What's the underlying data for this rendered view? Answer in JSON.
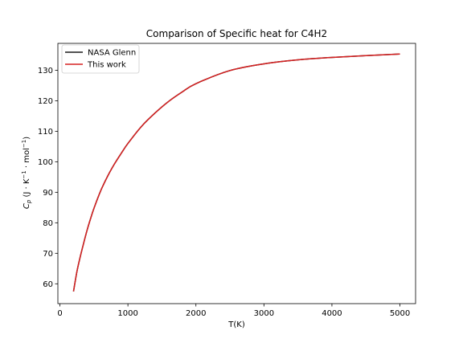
{
  "chart_data": {
    "type": "line",
    "title": "Comparison of Specific heat for C4H2",
    "xlabel": "T(K)",
    "ylabel": {
      "base": "C",
      "sub": "p",
      "rest": " (J · K",
      "sup1": "−1",
      "mid": " · mol",
      "sup2": "−1",
      "end": ")"
    },
    "xlim": [
      -30,
      5230
    ],
    "ylim": [
      53.5,
      138.8
    ],
    "xticks": [
      0,
      1000,
      2000,
      3000,
      4000,
      5000
    ],
    "yticks": [
      60,
      70,
      80,
      90,
      100,
      110,
      120,
      130
    ],
    "grid": false,
    "legend_position": "upper left",
    "series": [
      {
        "name": "NASA Glenn",
        "color": "#1a1a1a",
        "x": [
          200,
          250,
          298.15,
          350,
          400,
          450,
          500,
          600,
          700,
          800,
          900,
          1000,
          1200,
          1400,
          1600,
          1800,
          2000,
          2500,
          3000,
          3500,
          4000,
          4500,
          5000
        ],
        "y": [
          57.5,
          64.0,
          68.8,
          73.4,
          77.6,
          81.3,
          84.7,
          90.5,
          95.2,
          99.2,
          102.7,
          106.0,
          111.6,
          116.0,
          119.8,
          122.9,
          125.6,
          129.9,
          132.1,
          133.4,
          134.2,
          134.8,
          135.3
        ]
      },
      {
        "name": "This work",
        "color": "#d62020",
        "x": [
          200,
          250,
          298.15,
          350,
          400,
          450,
          500,
          600,
          700,
          800,
          900,
          1000,
          1200,
          1400,
          1600,
          1800,
          2000,
          2500,
          3000,
          3500,
          4000,
          4500,
          5000
        ],
        "y": [
          57.5,
          64.0,
          68.8,
          73.4,
          77.6,
          81.3,
          84.7,
          90.5,
          95.2,
          99.2,
          102.7,
          106.0,
          111.6,
          116.0,
          119.8,
          122.9,
          125.6,
          129.9,
          132.1,
          133.4,
          134.2,
          134.8,
          135.3
        ]
      }
    ]
  }
}
